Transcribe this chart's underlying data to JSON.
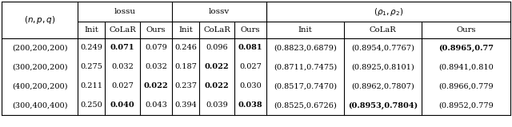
{
  "rows": [
    {
      "npq": "(200,200,200)",
      "lossu": [
        "0.249",
        "0.071",
        "0.079"
      ],
      "lossu_bold": [
        false,
        true,
        false
      ],
      "lossv": [
        "0.246",
        "0.096",
        "0.081"
      ],
      "lossv_bold": [
        false,
        false,
        true
      ],
      "rho": [
        "(0.8823,0.6879)",
        "(0.8954,0.7767)",
        "(0.8965,0.77"
      ],
      "rho_bold": [
        false,
        false,
        true
      ]
    },
    {
      "npq": "(300,200,200)",
      "lossu": [
        "0.275",
        "0.032",
        "0.032"
      ],
      "lossu_bold": [
        false,
        false,
        false
      ],
      "lossv": [
        "0.187",
        "0.022",
        "0.027"
      ],
      "lossv_bold": [
        false,
        true,
        false
      ],
      "rho": [
        "(0.8711,0.7475)",
        "(0.8925,0.8101)",
        "(0.8941,0.810"
      ],
      "rho_bold": [
        false,
        false,
        false
      ]
    },
    {
      "npq": "(400,200,200)",
      "lossu": [
        "0.211",
        "0.027",
        "0.022"
      ],
      "lossu_bold": [
        false,
        false,
        true
      ],
      "lossv": [
        "0.237",
        "0.022",
        "0.030"
      ],
      "lossv_bold": [
        false,
        true,
        false
      ],
      "rho": [
        "(0.8517,0.7470)",
        "(0.8962,0.7807)",
        "(0.8966,0.779"
      ],
      "rho_bold": [
        false,
        false,
        false
      ]
    },
    {
      "npq": "(300,400,400)",
      "lossu": [
        "0.250",
        "0.040",
        "0.043"
      ],
      "lossu_bold": [
        false,
        true,
        false
      ],
      "lossv": [
        "0.394",
        "0.039",
        "0.038"
      ],
      "lossv_bold": [
        false,
        false,
        true
      ],
      "rho": [
        "(0.8525,0.6726)",
        "(0.8953,0.7804)",
        "(0.8952,0.779"
      ],
      "rho_bold": [
        false,
        true,
        false
      ]
    }
  ],
  "background": "#ffffff"
}
